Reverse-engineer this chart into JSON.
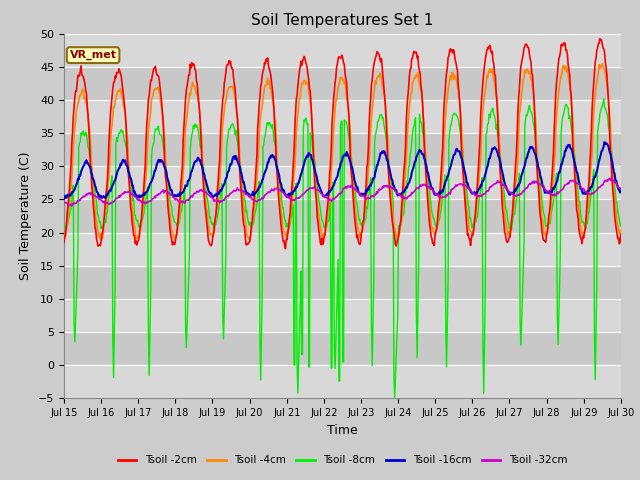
{
  "title": "Soil Temperatures Set 1",
  "xlabel": "Time",
  "ylabel": "Soil Temperature (C)",
  "ylim": [
    -5,
    50
  ],
  "colors": {
    "2cm": "#ff0000",
    "4cm": "#ff8800",
    "8cm": "#00ee00",
    "16cm": "#0000cc",
    "32cm": "#cc00cc"
  },
  "legend_labels": [
    "Tsoil -2cm",
    "Tsoil -4cm",
    "Tsoil -8cm",
    "Tsoil -16cm",
    "Tsoil -32cm"
  ],
  "vr_met_label": "VR_met",
  "x_tick_labels": [
    "Jul 15",
    "Jul 16",
    "Jul 17",
    "Jul 18",
    "Jul 19",
    "Jul 20",
    "Jul 21",
    "Jul 22",
    "Jul 23",
    "Jul 24",
    "Jul 25",
    "Jul 26",
    "Jul 27",
    "Jul 28",
    "Jul 29",
    "Jul 30"
  ],
  "yticks": [
    -5,
    0,
    5,
    10,
    15,
    20,
    25,
    30,
    35,
    40,
    45,
    50
  ],
  "background_color": "#cccccc",
  "plot_bg_color": "#d8d8d8",
  "band_colors": [
    "#d8d8d8",
    "#c8c8c8"
  ]
}
